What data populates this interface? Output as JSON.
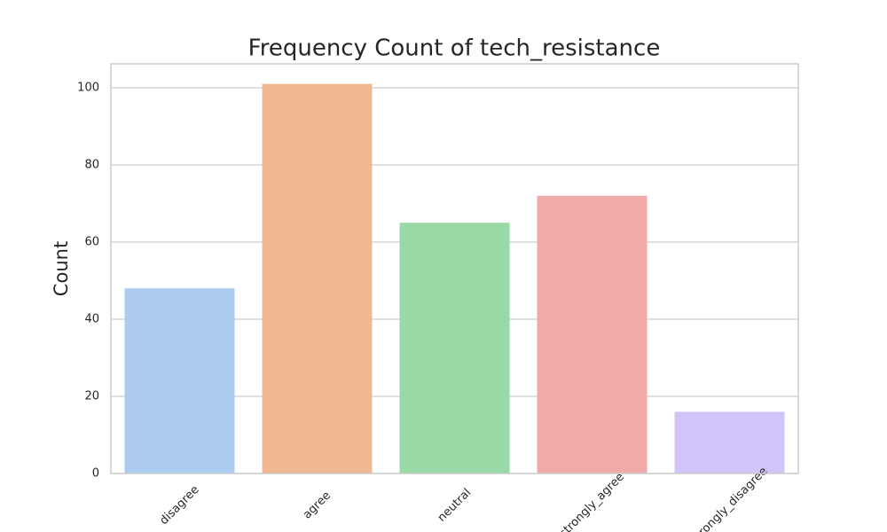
{
  "chart_data": {
    "type": "bar",
    "title": "Frequency Count of tech_resistance",
    "y_label": "Count",
    "categories": [
      "disagree",
      "agree",
      "neutral",
      "strongly_agree",
      "strongly_disagree"
    ],
    "values": [
      48,
      101,
      65,
      72,
      16
    ],
    "colors": [
      "#abcbef",
      "#f0b890",
      "#99d9a6",
      "#f0aaa8",
      "#d2c4f8"
    ],
    "ylim": [
      0,
      106.2
    ],
    "yticks": [
      0,
      20,
      40,
      60,
      80,
      100
    ],
    "grid": true
  }
}
